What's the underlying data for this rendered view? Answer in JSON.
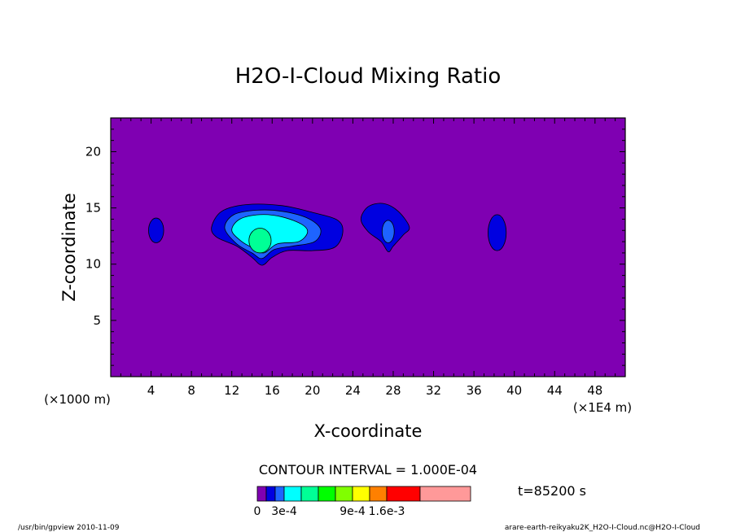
{
  "chart_data": {
    "type": "contour",
    "title": "H2O-I-Cloud Mixing Ratio",
    "xlabel": "X-coordinate",
    "ylabel": "Z-coordinate",
    "x_unit_label": "(×1E4 m)",
    "y_unit_label": "(×1000 m)",
    "xlim": [
      0,
      51
    ],
    "ylim": [
      0,
      23
    ],
    "x_ticks": [
      4,
      8,
      12,
      16,
      20,
      24,
      28,
      32,
      36,
      40,
      44,
      48
    ],
    "y_ticks": [
      5,
      10,
      15,
      20
    ],
    "contour_interval_text": "CONTOUR INTERVAL = 1.000E-04",
    "time_text": "t=85200 s",
    "background_color": "#7f00b2",
    "levels": [
      {
        "name": "0-1e-4",
        "color": "#7f00b2"
      },
      {
        "name": "1e-4-2e-4",
        "color": "#0000e0"
      },
      {
        "name": "2e-4-3e-4",
        "color": "#1e64ff"
      },
      {
        "name": "3e-4-4e-4",
        "color": "#00ffff"
      },
      {
        "name": "4e-4-5e-4",
        "color": "#00ff96"
      },
      {
        "name": "5e-4-7e-4",
        "color": "#00ff00"
      },
      {
        "name": "7e-4-9e-4",
        "color": "#80ff00"
      },
      {
        "name": "9e-4-1.2e-3",
        "color": "#ffff00"
      },
      {
        "name": "1.2e-3-1.6e-3",
        "color": "#ff8000"
      },
      {
        "name": "1.6e-3-2e-3",
        "color": "#ff0000"
      },
      {
        "name": ">2e-3",
        "color": "#ff9999"
      }
    ],
    "colorbar_labels": [
      {
        "text": "0",
        "after_box": 0
      },
      {
        "text": "3e-4",
        "after_box": 3
      },
      {
        "text": "9e-4",
        "after_box": 7
      },
      {
        "text": "1.6e-3",
        "after_box": 9
      }
    ],
    "blobs": [
      {
        "name": "blob-x4",
        "level": 1,
        "x": 4.5,
        "z": 13.0,
        "rx": 0.75,
        "rz": 1.1
      },
      {
        "name": "blob-main-outer",
        "level": 1,
        "shape": "main-outer"
      },
      {
        "name": "blob-main-l2",
        "level": 2,
        "shape": "main-l2"
      },
      {
        "name": "blob-main-l3",
        "level": 3,
        "shape": "main-l3"
      },
      {
        "name": "blob-main-l4",
        "level": 4,
        "x": 14.8,
        "z": 12.1,
        "rx": 1.1,
        "rz": 1.1
      },
      {
        "name": "blob-x27-outer",
        "level": 1,
        "shape": "x27-outer"
      },
      {
        "name": "blob-x27-inner",
        "level": 2,
        "x": 27.5,
        "z": 12.9,
        "rx": 0.6,
        "rz": 1.0
      },
      {
        "name": "blob-x38",
        "level": 1,
        "x": 38.3,
        "z": 12.8,
        "rx": 0.9,
        "rz": 1.6
      }
    ]
  },
  "footer": {
    "left": "/usr/bin/gpview  2010-11-09",
    "right": "arare-earth-reikyaku2K_H2O-I-Cloud.nc@H2O-I-Cloud"
  }
}
